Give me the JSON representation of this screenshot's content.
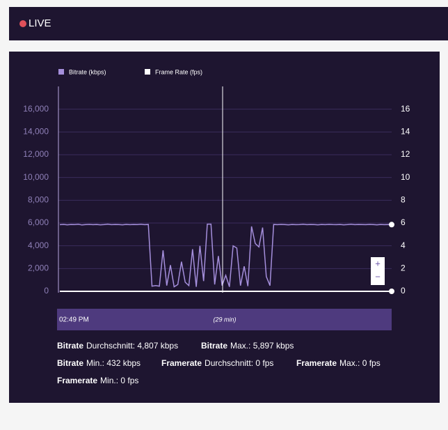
{
  "header": {
    "status": "LIVE"
  },
  "chart_data": {
    "type": "line",
    "series": [
      {
        "name": "Bitrate (kbps)",
        "color": "#a58fdc",
        "values": [
          5850,
          5880,
          5840,
          5870,
          5860,
          5890,
          5830,
          5860,
          5880,
          5850,
          5870,
          5840,
          5860,
          5900,
          5850,
          5870,
          5860,
          5840,
          5880,
          5850,
          5870,
          5860,
          5890,
          5850,
          5870,
          450,
          500,
          450,
          3600,
          500,
          2300,
          400,
          600,
          2600,
          800,
          500,
          3700,
          400,
          4000,
          900,
          5900,
          5900,
          600,
          3100,
          500,
          1400,
          400,
          4000,
          3800,
          500,
          2200,
          450,
          5700,
          4200,
          3900,
          5600,
          1300,
          500,
          5870,
          5850,
          5880,
          5860,
          5840,
          5870,
          5850,
          5860,
          5890,
          5850,
          5870,
          5860,
          5840,
          5870,
          5850,
          5880,
          5860,
          5850,
          5870,
          5840,
          5860,
          5890,
          5850,
          5870,
          5860,
          5850,
          5880,
          5860,
          5840,
          5870,
          5850,
          5860,
          5860
        ]
      },
      {
        "name": "Frame Rate (fps)",
        "color": "#ffffff",
        "axis": "y2",
        "values": [
          0,
          0,
          0,
          0,
          0,
          0,
          0,
          0,
          0,
          0,
          0,
          0,
          0,
          0,
          0,
          0,
          0,
          0,
          0,
          0,
          0,
          0,
          0,
          0,
          0,
          0,
          0,
          0,
          0,
          0,
          0,
          0,
          0,
          0,
          0,
          0,
          0,
          0,
          0,
          0,
          0,
          0,
          0,
          0,
          0,
          0,
          0,
          0,
          0,
          0,
          0,
          0,
          0,
          0,
          0,
          0,
          0,
          0,
          0,
          0,
          0,
          0,
          0,
          0,
          0,
          0,
          0,
          0,
          0,
          0,
          0,
          0,
          0,
          0,
          0,
          0,
          0,
          0,
          0,
          0,
          0,
          0,
          0,
          0,
          0,
          0,
          0,
          0,
          0,
          0,
          0
        ]
      }
    ],
    "ylim": [
      0,
      18000
    ],
    "yticks": [
      0,
      {
        "value": 2000,
        "label": "2,000"
      },
      {
        "value": 4000,
        "label": "4,000"
      },
      {
        "value": 6000,
        "label": "6,000"
      },
      {
        "value": 8000,
        "label": "8,000"
      },
      {
        "value": 10000,
        "label": "10,000"
      },
      {
        "value": 12000,
        "label": "12,000"
      },
      {
        "value": 14000,
        "label": "14,000"
      },
      {
        "value": 16000,
        "label": "16,000"
      }
    ],
    "y2lim": [
      0,
      18
    ],
    "y2ticks": [
      0,
      2,
      4,
      6,
      8,
      10,
      12,
      14,
      16
    ],
    "grid": true,
    "legend": "top-left",
    "navigator": {
      "start": "02:49 PM",
      "duration": "(29 min)"
    }
  },
  "stats": [
    {
      "label": "Bitrate",
      "text": "Durchschnitt: 4,807 kbps"
    },
    {
      "label": "Bitrate",
      "text": "Max.: 5,897 kbps"
    },
    {
      "label": "Bitrate",
      "text": "Min.: 432 kbps"
    },
    {
      "label": "Framerate",
      "text": "Durchschnitt: 0 fps"
    },
    {
      "label": "Framerate",
      "text": "Max.: 0 fps"
    },
    {
      "label": "Framerate",
      "text": "Min.: 0 fps"
    }
  ]
}
